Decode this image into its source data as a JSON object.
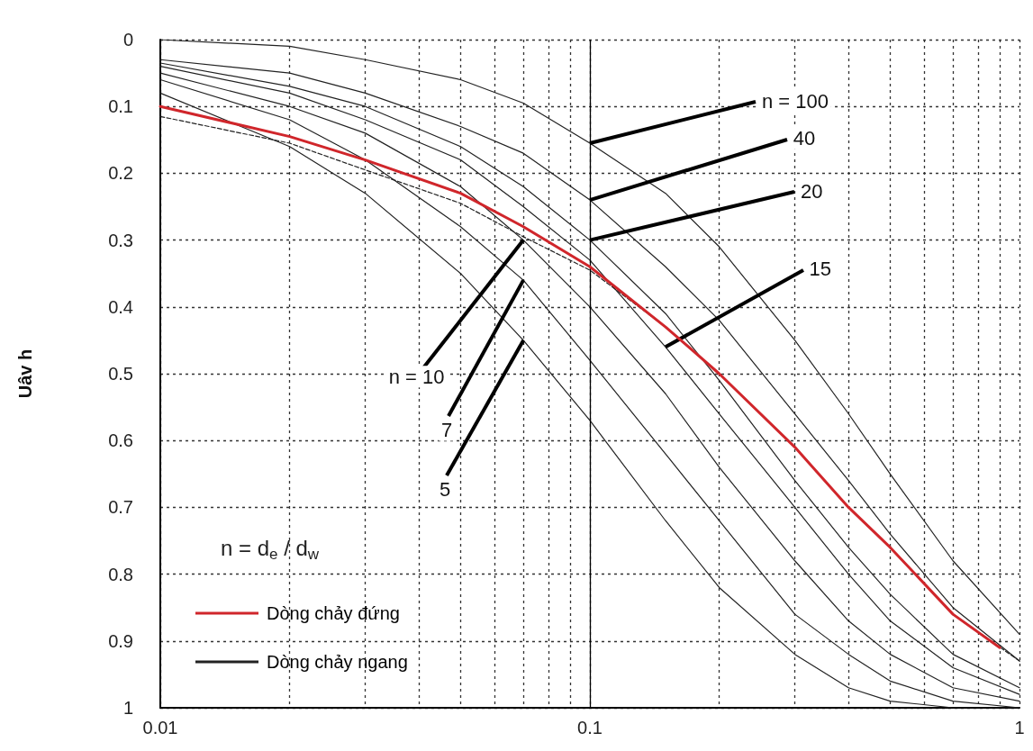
{
  "chart_data": {
    "type": "line",
    "ylabel": "Uâv h",
    "legend_title": "n = d$_{e}$ / d$_{w}$",
    "x": [
      0.01,
      0.02,
      0.03,
      0.05,
      0.07,
      0.1,
      0.15,
      0.2,
      0.3,
      0.4,
      0.5,
      0.7,
      1
    ],
    "series": [
      {
        "name": "Dòng chảy đứng",
        "color": "#d0262b",
        "x": [
          0.01,
          0.02,
          0.03,
          0.05,
          0.07,
          0.1,
          0.15,
          0.2,
          0.3,
          0.4,
          0.5,
          0.7,
          0.9
        ],
        "values": [
          0.1,
          0.145,
          0.18,
          0.23,
          0.28,
          0.34,
          0.43,
          0.5,
          0.61,
          0.7,
          0.76,
          0.86,
          0.91
        ]
      },
      {
        "color": "#222222",
        "line_style": "dashed",
        "values": [
          0.115,
          0.155,
          0.195,
          0.245,
          0.295,
          0.345,
          0.43,
          0.5,
          0.61,
          0.7,
          0.76,
          0.86,
          0.93
        ]
      },
      {
        "name": "Dòng chảy ngang",
        "color": "#222222",
        "values": [
          0.08,
          0.16,
          0.23,
          0.35,
          0.45,
          0.57,
          0.72,
          0.82,
          0.92,
          0.97,
          0.99,
          1.0,
          1.0
        ]
      },
      {
        "color": "#222222",
        "values": [
          0.06,
          0.12,
          0.18,
          0.28,
          0.36,
          0.48,
          0.62,
          0.72,
          0.86,
          0.92,
          0.96,
          0.99,
          1.0
        ]
      },
      {
        "color": "#222222",
        "values": [
          0.05,
          0.1,
          0.14,
          0.22,
          0.3,
          0.4,
          0.53,
          0.64,
          0.78,
          0.87,
          0.92,
          0.97,
          0.99
        ]
      },
      {
        "color": "#222222",
        "values": [
          0.04,
          0.08,
          0.12,
          0.18,
          0.25,
          0.33,
          0.46,
          0.56,
          0.7,
          0.8,
          0.87,
          0.94,
          0.98
        ]
      },
      {
        "color": "#222222",
        "values": [
          0.035,
          0.07,
          0.1,
          0.16,
          0.22,
          0.3,
          0.41,
          0.51,
          0.66,
          0.76,
          0.83,
          0.92,
          0.97
        ]
      },
      {
        "color": "#222222",
        "values": [
          0.03,
          0.05,
          0.08,
          0.13,
          0.17,
          0.24,
          0.34,
          0.42,
          0.56,
          0.66,
          0.74,
          0.85,
          0.93
        ]
      },
      {
        "color": "#222222",
        "values": [
          0.0,
          0.01,
          0.03,
          0.06,
          0.095,
          0.155,
          0.23,
          0.31,
          0.45,
          0.56,
          0.65,
          0.78,
          0.89
        ]
      }
    ],
    "annotations": [
      {
        "text": "n = 100",
        "x": 0.1,
        "y": 0.155
      },
      {
        "text": "40",
        "x": 0.1,
        "y": 0.24
      },
      {
        "text": "20",
        "x": 0.1,
        "y": 0.3
      },
      {
        "text": "15",
        "x": 0.15,
        "y": 0.46
      },
      {
        "text": "n = 10",
        "x": 0.07,
        "y": 0.3
      },
      {
        "text": "7",
        "x": 0.07,
        "y": 0.36
      },
      {
        "text": "5",
        "x": 0.07,
        "y": 0.45
      }
    ],
    "ref_lines": [
      {
        "axis": "x",
        "value": 0.1,
        "color": "#000000"
      }
    ],
    "log": "x",
    "xlim": [
      0.01,
      1
    ],
    "xticks": [
      0.01,
      {
        "value": 0.02,
        "label": null
      },
      {
        "value": 0.03,
        "label": null
      },
      {
        "value": 0.04,
        "label": null
      },
      {
        "value": 0.05,
        "label": null
      },
      {
        "value": 0.06,
        "label": null
      },
      {
        "value": 0.07,
        "label": null
      },
      {
        "value": 0.08,
        "label": null
      },
      {
        "value": 0.09,
        "label": null
      },
      0.1,
      {
        "value": 0.2,
        "label": null
      },
      {
        "value": 0.3,
        "label": null
      },
      {
        "value": 0.4,
        "label": null
      },
      {
        "value": 0.5,
        "label": null
      },
      {
        "value": 0.6,
        "label": null
      },
      {
        "value": 0.7,
        "label": null
      },
      {
        "value": 0.8,
        "label": null
      },
      {
        "value": 0.9,
        "label": null
      },
      1
    ],
    "ylim": [
      1,
      0
    ],
    "yticks": [
      0,
      0.1,
      0.2,
      0.3,
      0.4,
      0.5,
      0.6,
      0.7,
      0.8,
      0.9,
      1
    ],
    "grid": true,
    "legend": "bottom left",
    "marker": "none",
    "line_style": "solid"
  }
}
